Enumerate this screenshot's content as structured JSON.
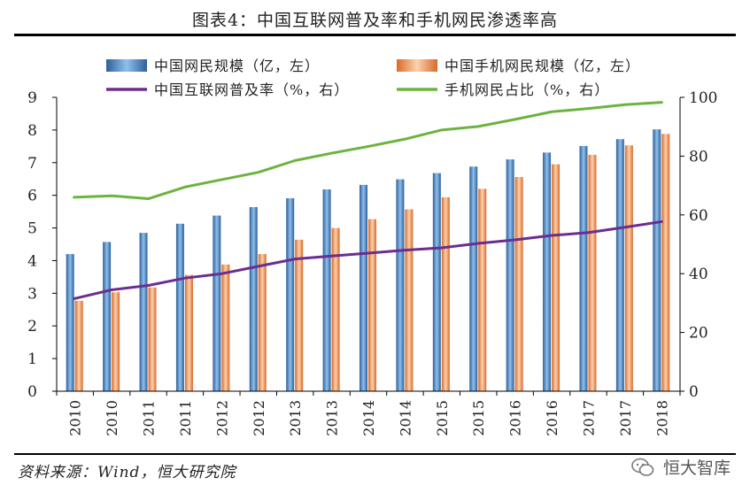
{
  "title": "图表4：中国互联网普及率和手机网民渗透率高",
  "source": "资料来源：Wind，恒大研究院",
  "brand": "恒大智库",
  "colors": {
    "netizens_bar": "#4a86c5",
    "mobile_bar": "#f0935a",
    "penetration_line": "#6b2d8f",
    "mobile_share_line": "#6db33f"
  },
  "chart_data": {
    "type": "bar",
    "categories": [
      "2010",
      "2010",
      "2011",
      "2011",
      "2012",
      "2012",
      "2013",
      "2013",
      "2014",
      "2014",
      "2015",
      "2015",
      "2016",
      "2016",
      "2017",
      "2017",
      "2018"
    ],
    "series": [
      {
        "name": "中国网民规模（亿，左）",
        "type": "bar",
        "axis": "left",
        "values": [
          4.2,
          4.57,
          4.85,
          5.13,
          5.38,
          5.64,
          5.91,
          6.18,
          6.32,
          6.49,
          6.68,
          6.88,
          7.1,
          7.31,
          7.51,
          7.72,
          8.02
        ]
      },
      {
        "name": "中国手机网民规模（亿，左）",
        "type": "bar",
        "axis": "left",
        "values": [
          2.77,
          3.03,
          3.18,
          3.56,
          3.88,
          4.2,
          4.64,
          5.0,
          5.27,
          5.57,
          5.94,
          6.2,
          6.56,
          6.95,
          7.24,
          7.53,
          7.88
        ]
      },
      {
        "name": "中国互联网普及率（%，右）",
        "type": "line",
        "axis": "right",
        "values": [
          31.5,
          34.5,
          36.0,
          38.5,
          40.0,
          42.5,
          45.0,
          46.0,
          47.0,
          48.0,
          48.8,
          50.3,
          51.5,
          53.0,
          54.0,
          55.8,
          57.7
        ]
      },
      {
        "name": "手机网民占比（%，右）",
        "type": "line",
        "axis": "right",
        "values": [
          66.0,
          66.5,
          65.5,
          69.5,
          72.0,
          74.5,
          78.5,
          81.0,
          83.3,
          85.8,
          88.9,
          90.1,
          92.5,
          95.1,
          96.2,
          97.5,
          98.3
        ]
      }
    ],
    "y_left": {
      "min": 0,
      "max": 9,
      "ticks": [
        "0",
        "1",
        "2",
        "3",
        "4",
        "5",
        "6",
        "7",
        "8",
        "9"
      ]
    },
    "y_right": {
      "min": 0,
      "max": 100,
      "ticks": [
        "0",
        "20",
        "40",
        "60",
        "80",
        "100"
      ]
    },
    "legend_placement": "top",
    "grid": false
  }
}
